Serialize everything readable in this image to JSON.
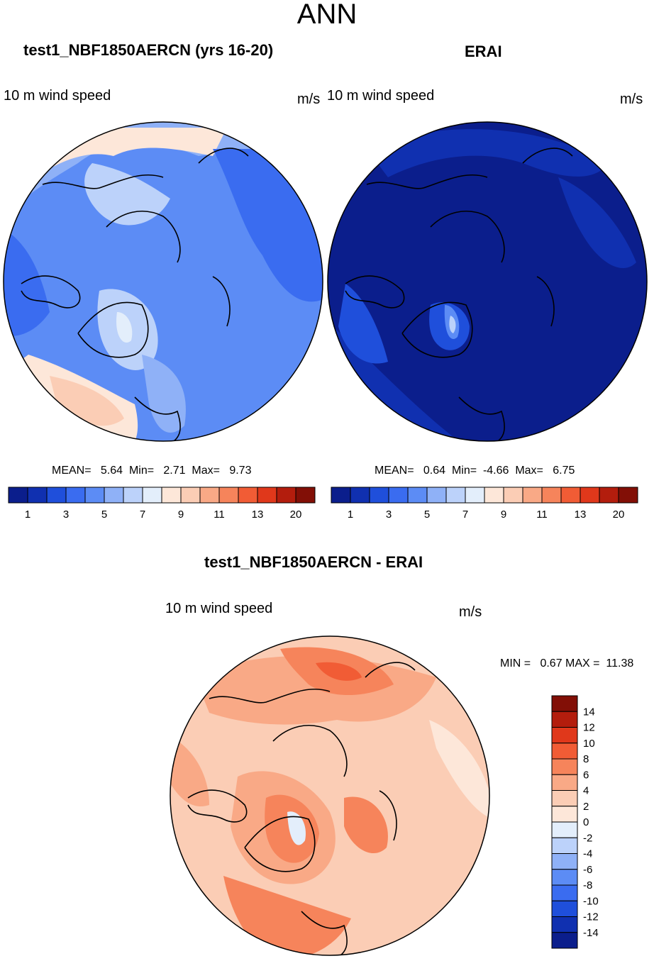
{
  "page_title": "ANN",
  "colors": {
    "seq": [
      "#0b1e8c",
      "#1030b0",
      "#1f4fdb",
      "#3a6cf0",
      "#5c8cf5",
      "#8fb1f7",
      "#bcd2fa",
      "#e3eefb",
      "#fde7d9",
      "#fbcdb5",
      "#f9a986",
      "#f6845b",
      "#f15c35",
      "#e0381b",
      "#b31d0d",
      "#820f06"
    ],
    "diff": [
      "#0b1e8c",
      "#1030b0",
      "#1f4fdb",
      "#3a6cf0",
      "#5c8cf5",
      "#8fb1f7",
      "#bcd2fa",
      "#e3eefb",
      "#fde7d9",
      "#fbcdb5",
      "#f9a986",
      "#f6845b",
      "#f15c35",
      "#e0381b",
      "#b31d0d",
      "#820f06"
    ]
  },
  "panels": {
    "left": {
      "title": "test1_NBF1850AERCN (yrs 16-20)",
      "variable": "10 m wind speed",
      "units": "m/s",
      "stats_line": "MEAN=   5.64  Min=   2.71  Max=   9.73"
    },
    "right": {
      "title": "ERAI",
      "variable": "10 m wind speed",
      "units": "m/s",
      "stats_line": "MEAN=   0.64  Min=  -4.66  Max=   6.75"
    },
    "diff": {
      "title": "test1_NBF1850AERCN - ERAI",
      "variable": "10 m wind speed",
      "units": "m/s",
      "stats_line": "MIN =   0.67 MAX =  11.38"
    }
  },
  "chart_data": [
    {
      "type": "heatmap",
      "name": "test1_NBF1850AERCN (yrs 16-20) 10 m wind speed",
      "projection": "north polar stereographic",
      "colorbar_ticks": [
        "1",
        "3",
        "5",
        "7",
        "9",
        "11",
        "13",
        "20"
      ],
      "colorbar_bins": 16,
      "mean": 5.64,
      "min": 2.71,
      "max": 9.73,
      "units": "m/s"
    },
    {
      "type": "heatmap",
      "name": "ERAI 10 m wind speed",
      "projection": "north polar stereographic",
      "colorbar_ticks": [
        "1",
        "3",
        "5",
        "7",
        "9",
        "11",
        "13",
        "20"
      ],
      "colorbar_bins": 16,
      "mean": 0.64,
      "min": -4.66,
      "max": 6.75,
      "units": "m/s"
    },
    {
      "type": "heatmap",
      "name": "test1_NBF1850AERCN - ERAI 10 m wind speed",
      "projection": "north polar stereographic",
      "colorbar_ticks": [
        "14",
        "12",
        "10",
        "8",
        "6",
        "4",
        "2",
        "0",
        "-2",
        "-4",
        "-6",
        "-8",
        "-10",
        "-12",
        "-14"
      ],
      "colorbar_bins": 16,
      "min": 0.67,
      "max": 11.38,
      "units": "m/s"
    }
  ]
}
